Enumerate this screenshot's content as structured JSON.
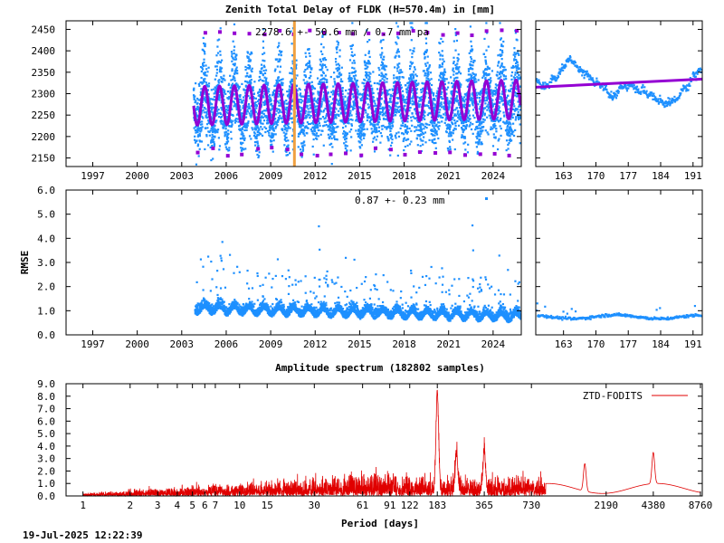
{
  "title": "Zenith Total Delay of FLDK (H=570.4m) in [mm]",
  "timestamp": "19-Jul-2025 12:22:39",
  "colors": {
    "data_blue": "#1e90ff",
    "trend_purple": "#9400d3",
    "event_orange": "#f0a040",
    "spectrum_red": "#e00000"
  },
  "chart_data": [
    {
      "type": "scatter",
      "panel": "ztd-timeseries",
      "annotation": "2278.6 +-  50.6 mm /  0.7 mm pa",
      "xticks": [
        "1997",
        "2000",
        "2003",
        "2006",
        "2009",
        "2012",
        "2015",
        "2018",
        "2021",
        "2024"
      ],
      "xlim": [
        1995.2,
        2025.9
      ],
      "yticks": [
        "2150",
        "2200",
        "2250",
        "2300",
        "2350",
        "2400",
        "2450"
      ],
      "ylim": [
        2130,
        2470
      ],
      "data_start_year": 2003.8,
      "mean_mm": 2278.6,
      "std_mm": 50.6,
      "trend_mm_per_year": 0.7,
      "seasonal_amplitude_mm": 45,
      "event_line_year": 2010.6,
      "grid": false
    },
    {
      "type": "scatter",
      "panel": "ztd-recent",
      "xticks": [
        "163",
        "170",
        "177",
        "184",
        "191"
      ],
      "xlim": [
        157,
        193
      ],
      "ylim": [
        2130,
        2470
      ],
      "fit_start": 2315,
      "fit_end": 2334
    },
    {
      "type": "scatter",
      "panel": "rmse-timeseries",
      "ylabel": "RMSE",
      "annotation": "0.87 +-  0.23 mm",
      "xticks": [
        "1997",
        "2000",
        "2003",
        "2006",
        "2009",
        "2012",
        "2015",
        "2018",
        "2021",
        "2024"
      ],
      "xlim": [
        1995.2,
        2025.9
      ],
      "yticks": [
        "0.0",
        "1.0",
        "2.0",
        "3.0",
        "4.0",
        "5.0",
        "6.0"
      ],
      "ylim": [
        0,
        6
      ],
      "mean": 0.87,
      "std": 0.23
    },
    {
      "type": "scatter",
      "panel": "rmse-recent",
      "xticks": [
        "163",
        "170",
        "177",
        "184",
        "191"
      ],
      "xlim": [
        157,
        193
      ],
      "ylim": [
        0,
        6
      ],
      "level": 0.75
    },
    {
      "type": "line",
      "panel": "amplitude-spectrum",
      "title": "Amplitude spectrum (182802 samples)",
      "xlabel": "Period [days]",
      "xscale": "log",
      "xticks": [
        "1",
        "2",
        "3",
        "4",
        "5",
        "6",
        "7",
        "10",
        "15",
        "30",
        "61",
        "91",
        "122",
        "183",
        "365",
        "730",
        "2190",
        "4380",
        "8760"
      ],
      "xlim": [
        0.78,
        9000
      ],
      "yticks": [
        "0.0",
        "1.0",
        "2.0",
        "3.0",
        "4.0",
        "5.0",
        "6.0",
        "7.0",
        "8.0",
        "9.0"
      ],
      "ylim": [
        0,
        9
      ],
      "legend": "top-right",
      "series": [
        {
          "name": "ZTD-FODITS",
          "peaks": [
            {
              "period": 183,
              "amplitude": 7.8
            },
            {
              "period": 365,
              "amplitude": 3.3
            },
            {
              "period": 243,
              "amplitude": 3.0
            },
            {
              "period": 4380,
              "amplitude": 2.5
            },
            {
              "period": 1600,
              "amplitude": 2.2
            }
          ]
        }
      ]
    }
  ]
}
